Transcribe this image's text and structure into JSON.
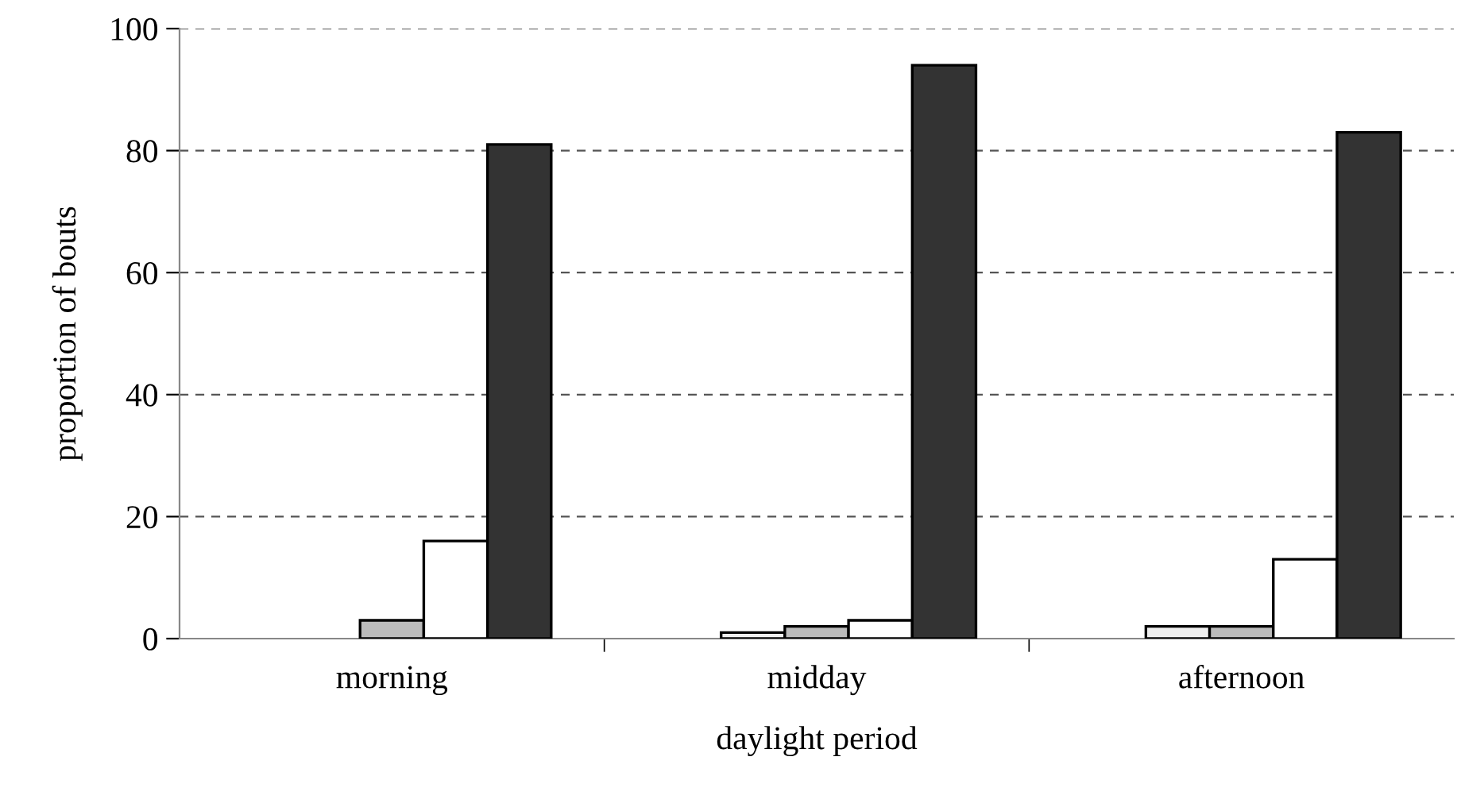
{
  "chart_data": {
    "type": "bar",
    "xlabel": "daylight period",
    "ylabel": "proportion of bouts",
    "categories": [
      "morning",
      "midday",
      "afternoon"
    ],
    "series": [
      {
        "color": "#eeeeee",
        "values": [
          null,
          1,
          2
        ]
      },
      {
        "color": "#bbbbbb",
        "values": [
          3,
          2,
          2
        ]
      },
      {
        "color": "#ffffff",
        "values": [
          16,
          3,
          13
        ]
      },
      {
        "color": "#333333",
        "values": [
          81,
          94,
          83
        ]
      }
    ],
    "ylim": [
      0,
      100
    ],
    "yticks": [
      0,
      20,
      40,
      60,
      80,
      100
    ],
    "grid": "y",
    "line_style": "dashed"
  }
}
